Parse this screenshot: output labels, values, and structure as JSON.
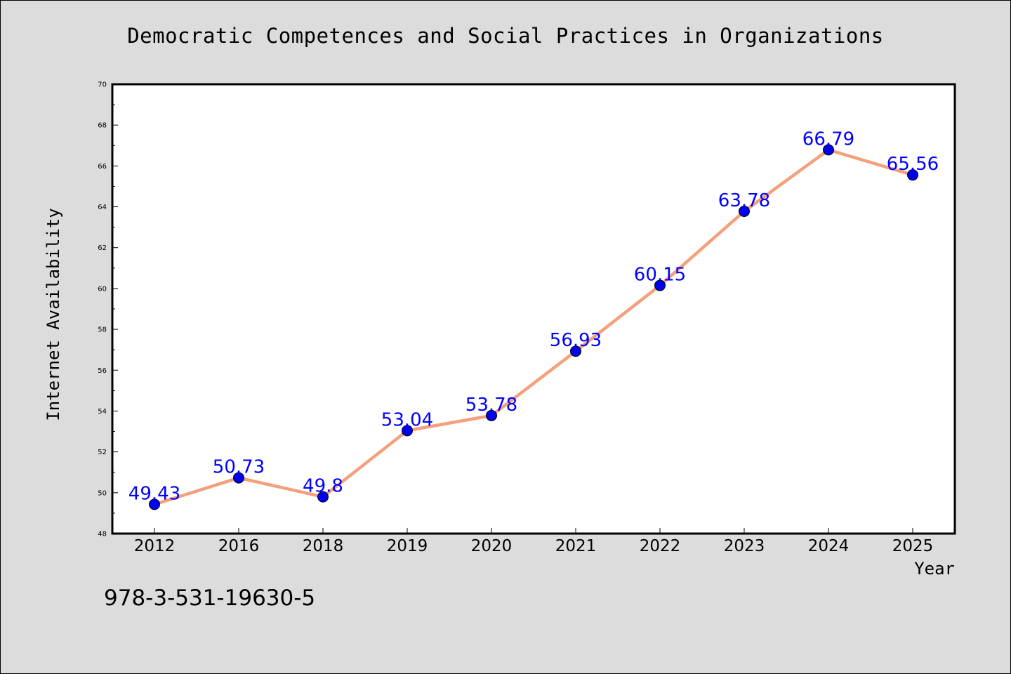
{
  "chart_data": {
    "type": "line",
    "title": "Democratic Competences and Social Practices in Organizations",
    "xlabel": "Year",
    "ylabel": "Internet Availability",
    "categories": [
      "2012",
      "2016",
      "2018",
      "2019",
      "2020",
      "2021",
      "2022",
      "2023",
      "2024",
      "2025"
    ],
    "series": [
      {
        "values": [
          49.43,
          50.73,
          49.8,
          53.04,
          53.78,
          56.93,
          60.15,
          63.78,
          66.79,
          65.56
        ],
        "data_labels": [
          "49.43",
          "50.73",
          "49.8",
          "53.04",
          "53.78",
          "56.93",
          "60.15",
          "63.78",
          "66.79",
          "65.56"
        ],
        "line_color": "#f4a07c",
        "marker_color": "#0000ee"
      }
    ],
    "ylim": [
      48,
      70
    ],
    "yticks": [
      "48",
      "50",
      "52",
      "54",
      "56",
      "58",
      "60",
      "62",
      "64",
      "66",
      "68",
      "70"
    ],
    "grid": false,
    "legend": "none",
    "label_color": "#0000ff",
    "background": "#dcdcdc",
    "plot_background": "#ffffff"
  },
  "footer": {
    "isbn": "978-3-531-19630-5"
  }
}
